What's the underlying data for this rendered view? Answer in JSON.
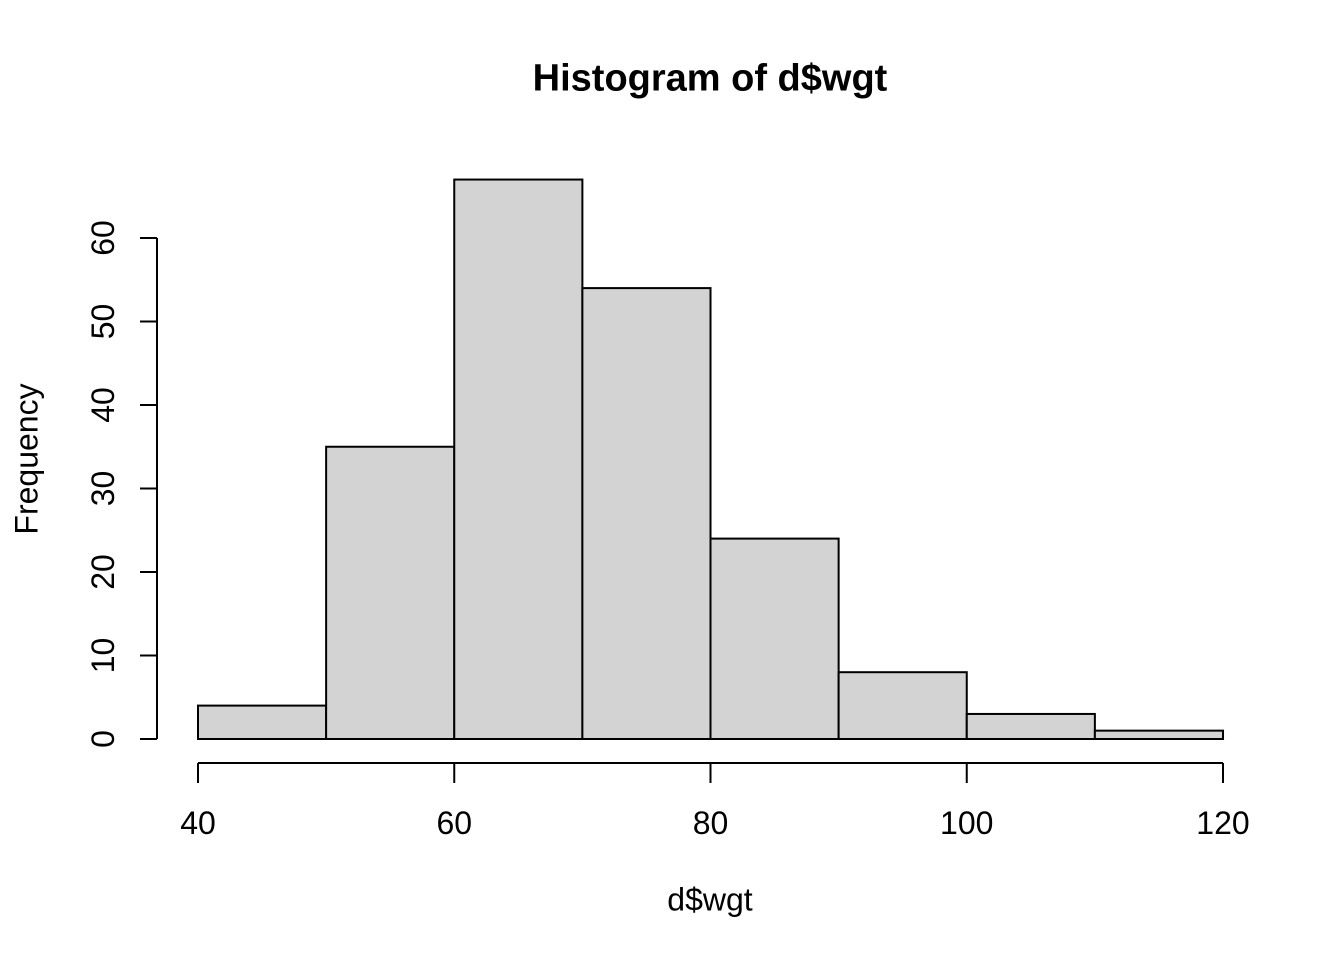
{
  "page": {
    "background": "#ffffff"
  },
  "chart_data": {
    "type": "bar",
    "subtype": "histogram",
    "title": "Histogram of d$wgt",
    "xlabel": "d$wgt",
    "ylabel": "Frequency",
    "bin_edges": [
      40,
      50,
      60,
      70,
      80,
      90,
      100,
      110,
      120
    ],
    "counts": [
      4,
      35,
      67,
      54,
      24,
      8,
      3,
      1
    ],
    "x_ticks": [
      40,
      60,
      80,
      100,
      120
    ],
    "y_ticks": [
      0,
      10,
      20,
      30,
      40,
      50,
      60
    ],
    "xlim": [
      40,
      120
    ],
    "ylim": [
      0,
      60
    ],
    "grid": false,
    "legend": null,
    "colors": {
      "bar_fill": "#d3d3d3",
      "bar_stroke": "#000000",
      "axis": "#000000",
      "text": "#000000"
    }
  }
}
